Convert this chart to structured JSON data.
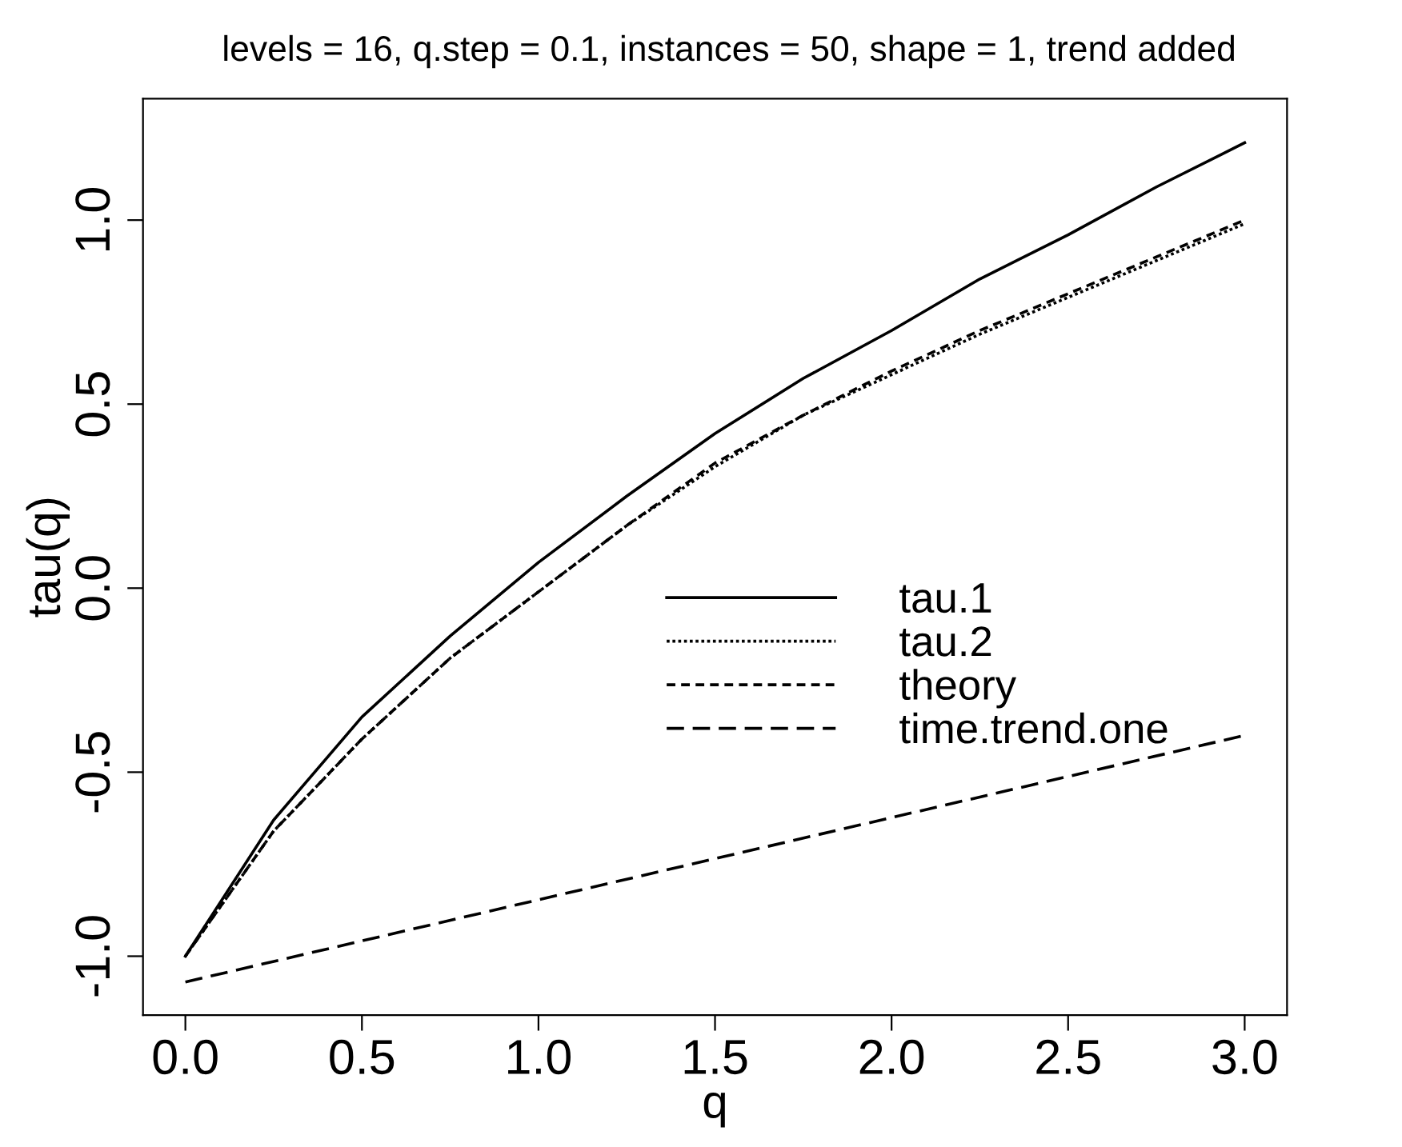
{
  "chart_data": {
    "type": "line",
    "title": "levels = 16, q.step = 0.1, instances = 50, shape = 1, trend added",
    "xlabel": "q",
    "ylabel": "tau(q)",
    "xlim": [
      -0.12,
      3.12
    ],
    "ylim": [
      -1.16,
      1.33
    ],
    "xticks": [
      {
        "value": 0,
        "label": "0.0"
      },
      {
        "value": 0.5,
        "label": "0.5"
      },
      {
        "value": 1,
        "label": "1.0"
      },
      {
        "value": 1.5,
        "label": "1.5"
      },
      {
        "value": 2,
        "label": "2.0"
      },
      {
        "value": 2.5,
        "label": "2.5"
      },
      {
        "value": 3,
        "label": "3.0"
      }
    ],
    "yticks": [
      {
        "value": -1,
        "label": "-1.0"
      },
      {
        "value": -0.5,
        "label": "-0.5"
      },
      {
        "value": 0,
        "label": "0.0"
      },
      {
        "value": 0.5,
        "label": "0.5"
      },
      {
        "value": 1,
        "label": "1.0"
      }
    ],
    "grid": false,
    "legend": "center right",
    "x": [
      0,
      0.25,
      0.5,
      0.75,
      1,
      1.25,
      1.5,
      1.75,
      2,
      2.25,
      2.5,
      2.75,
      3
    ],
    "series": [
      {
        "name": "tau.1",
        "color": "#000000",
        "line_style": "solid",
        "values": [
          -1,
          -0.63,
          -0.35,
          -0.13,
          0.07,
          0.25,
          0.42,
          0.57,
          0.7,
          0.84,
          0.96,
          1.09,
          1.21
        ]
      },
      {
        "name": "tau.2",
        "color": "#000000",
        "line_style": "dotted",
        "values": [
          -1,
          -0.66,
          -0.41,
          -0.19,
          -0.01,
          0.17,
          0.33,
          0.47,
          0.58,
          0.69,
          0.79,
          0.89,
          0.99
        ]
      },
      {
        "name": "theory",
        "color": "#000000",
        "line_style": "dashed",
        "values": [
          -1,
          -0.66,
          -0.41,
          -0.19,
          -0.01,
          0.17,
          0.34,
          0.47,
          0.59,
          0.7,
          0.8,
          0.9,
          1.0
        ]
      },
      {
        "name": "time.trend.one",
        "color": "#000000",
        "line_style": "dashed",
        "x": [
          0,
          3
        ],
        "values": [
          -1.07,
          -0.4
        ]
      }
    ]
  }
}
